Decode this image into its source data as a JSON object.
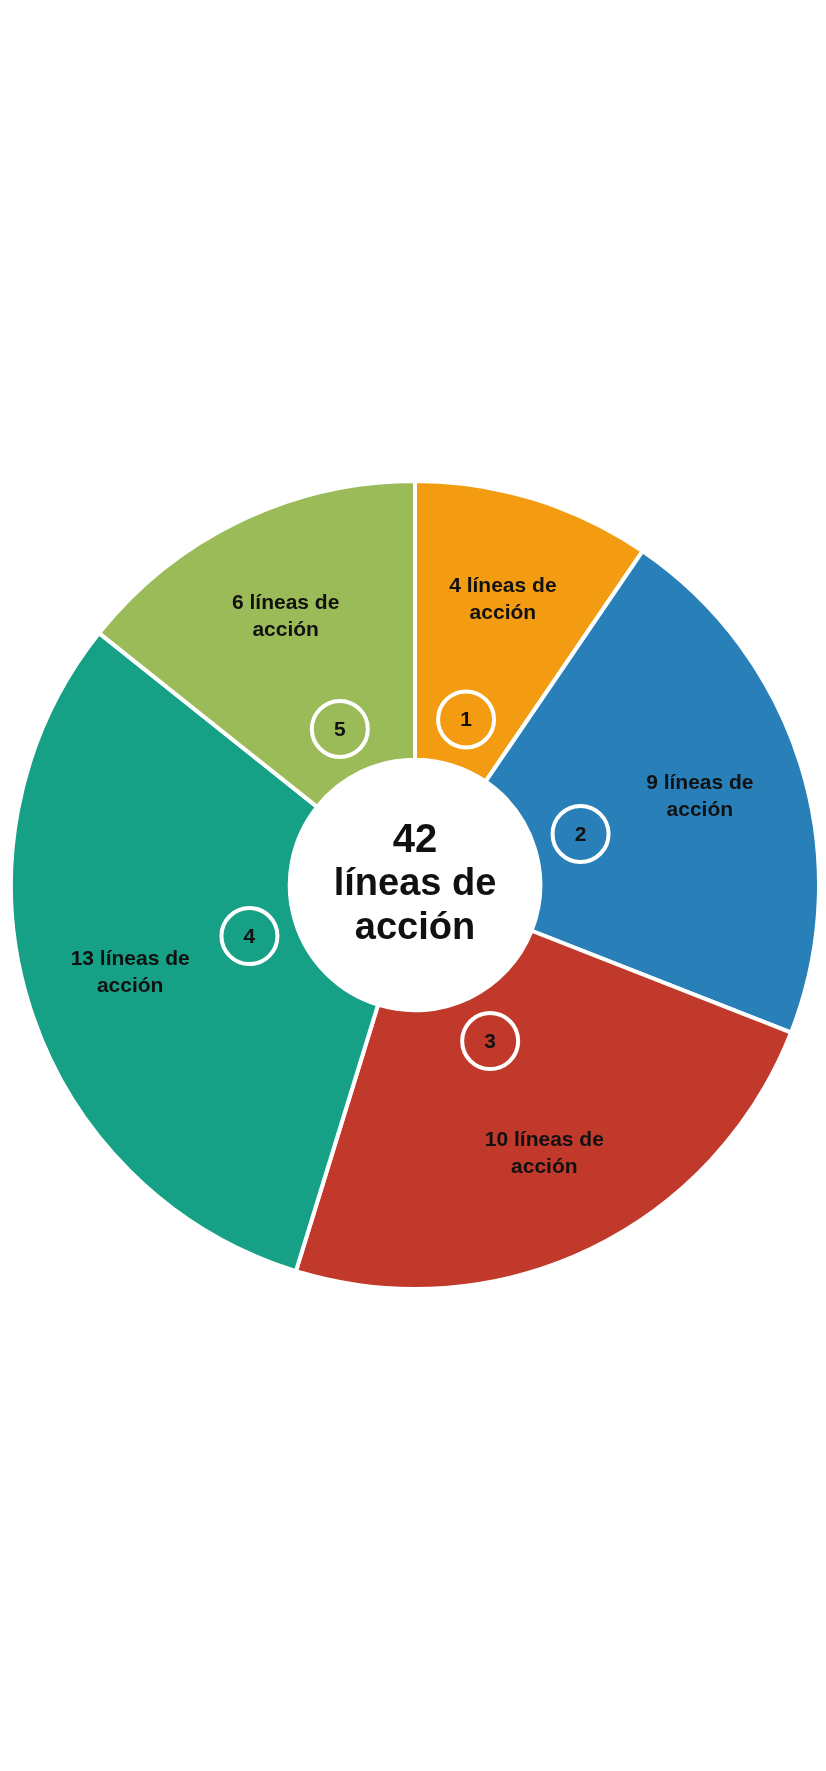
{
  "chart_data": {
    "type": "donut",
    "categories": [
      "1",
      "2",
      "3",
      "4",
      "5"
    ],
    "values": [
      4,
      9,
      10,
      13,
      6
    ],
    "colors": [
      "#f39c12",
      "#2980b9",
      "#c0392b",
      "#16a085",
      "#9bbb59"
    ],
    "value_labels": [
      "4 líneas de acción",
      "9 líneas de acción",
      "10 líneas de acción",
      "13 líneas de acción",
      "6 líneas de acción"
    ],
    "annotations": [
      "42 líneas de acción"
    ]
  }
}
